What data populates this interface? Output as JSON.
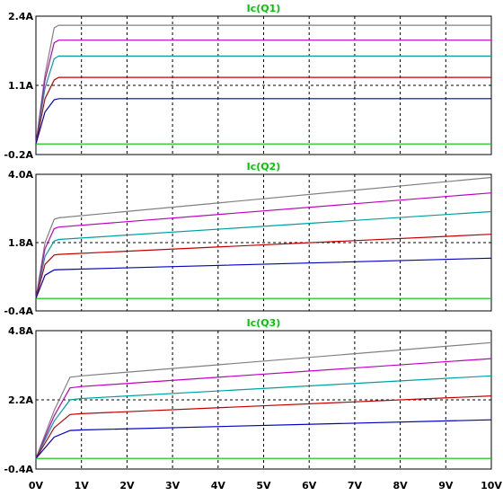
{
  "chart_data": [
    {
      "type": "line",
      "title": "Ic(Q1)",
      "xlabel": "",
      "ylabel": "",
      "xlim": [
        0,
        10
      ],
      "ylim": [
        -0.2,
        2.4
      ],
      "y_ticks": [
        "2.4A",
        "1.1A",
        "-0.2A"
      ],
      "x_ticks": [],
      "grid": true,
      "series": [
        {
          "color": "#808080",
          "values": [
            [
              0,
              0.0
            ],
            [
              0.2,
              1.3
            ],
            [
              0.4,
              2.18
            ],
            [
              0.5,
              2.23
            ],
            [
              10,
              2.23
            ]
          ]
        },
        {
          "color": "#bf00bf",
          "values": [
            [
              0,
              0.0
            ],
            [
              0.2,
              1.2
            ],
            [
              0.4,
              1.9
            ],
            [
              0.5,
              1.95
            ],
            [
              10,
              1.95
            ]
          ]
        },
        {
          "color": "#00a0a0",
          "values": [
            [
              0,
              0.0
            ],
            [
              0.2,
              1.05
            ],
            [
              0.4,
              1.6
            ],
            [
              0.5,
              1.65
            ],
            [
              10,
              1.65
            ]
          ]
        },
        {
          "color": "#c00000",
          "values": [
            [
              0,
              0.0
            ],
            [
              0.2,
              0.85
            ],
            [
              0.4,
              1.2
            ],
            [
              0.5,
              1.25
            ],
            [
              10,
              1.25
            ]
          ]
        },
        {
          "color": "#0000c0",
          "values": [
            [
              0,
              0.0
            ],
            [
              0.2,
              0.6
            ],
            [
              0.4,
              0.83
            ],
            [
              0.5,
              0.85
            ],
            [
              10,
              0.85
            ]
          ]
        },
        {
          "color": "#00c000",
          "values": [
            [
              0,
              0.0
            ],
            [
              10,
              0.0
            ]
          ]
        }
      ]
    },
    {
      "type": "line",
      "title": "Ic(Q2)",
      "xlabel": "",
      "ylabel": "",
      "xlim": [
        0,
        10
      ],
      "ylim": [
        -0.4,
        4.0
      ],
      "y_ticks": [
        "4.0A",
        "1.8A",
        "-0.4A"
      ],
      "x_ticks": [],
      "grid": true,
      "series": [
        {
          "color": "#808080",
          "values": [
            [
              0,
              0.0
            ],
            [
              0.2,
              1.8
            ],
            [
              0.4,
              2.55
            ],
            [
              0.5,
              2.6
            ],
            [
              10,
              3.9
            ]
          ]
        },
        {
          "color": "#bf00bf",
          "values": [
            [
              0,
              0.0
            ],
            [
              0.2,
              1.6
            ],
            [
              0.4,
              2.25
            ],
            [
              0.5,
              2.3
            ],
            [
              10,
              3.4
            ]
          ]
        },
        {
          "color": "#00a0a0",
          "values": [
            [
              0,
              0.0
            ],
            [
              0.2,
              1.35
            ],
            [
              0.4,
              1.85
            ],
            [
              0.5,
              1.9
            ],
            [
              10,
              2.8
            ]
          ]
        },
        {
          "color": "#c00000",
          "values": [
            [
              0,
              0.0
            ],
            [
              0.2,
              1.1
            ],
            [
              0.4,
              1.4
            ],
            [
              0.5,
              1.42
            ],
            [
              10,
              2.07
            ]
          ]
        },
        {
          "color": "#0000c0",
          "values": [
            [
              0,
              0.0
            ],
            [
              0.2,
              0.75
            ],
            [
              0.4,
              0.92
            ],
            [
              0.5,
              0.93
            ],
            [
              10,
              1.3
            ]
          ]
        },
        {
          "color": "#00c000",
          "values": [
            [
              0,
              0.0
            ],
            [
              10,
              0.0
            ]
          ]
        }
      ]
    },
    {
      "type": "line",
      "title": "Ic(Q3)",
      "xlabel": "",
      "ylabel": "",
      "xlim": [
        0,
        10
      ],
      "ylim": [
        -0.4,
        4.8
      ],
      "y_ticks": [
        "4.8A",
        "2.2A",
        "-0.4A"
      ],
      "x_ticks": [
        "0V",
        "1V",
        "2V",
        "3V",
        "4V",
        "5V",
        "6V",
        "7V",
        "8V",
        "9V",
        "10V"
      ],
      "grid": true,
      "series": [
        {
          "color": "#808080",
          "values": [
            [
              0,
              0.0
            ],
            [
              0.4,
              1.8
            ],
            [
              0.75,
              3.05
            ],
            [
              1.0,
              3.1
            ],
            [
              10,
              4.35
            ]
          ]
        },
        {
          "color": "#bf00bf",
          "values": [
            [
              0,
              0.0
            ],
            [
              0.4,
              1.6
            ],
            [
              0.75,
              2.65
            ],
            [
              1.0,
              2.7
            ],
            [
              10,
              3.75
            ]
          ]
        },
        {
          "color": "#00a0a0",
          "values": [
            [
              0,
              0.0
            ],
            [
              0.4,
              1.4
            ],
            [
              0.75,
              2.2
            ],
            [
              1.0,
              2.25
            ],
            [
              10,
              3.1
            ]
          ]
        },
        {
          "color": "#c00000",
          "values": [
            [
              0,
              0.0
            ],
            [
              0.4,
              1.15
            ],
            [
              0.75,
              1.65
            ],
            [
              1.0,
              1.68
            ],
            [
              10,
              2.35
            ]
          ]
        },
        {
          "color": "#0000c0",
          "values": [
            [
              0,
              0.0
            ],
            [
              0.4,
              0.8
            ],
            [
              0.75,
              1.05
            ],
            [
              1.0,
              1.07
            ],
            [
              10,
              1.45
            ]
          ]
        },
        {
          "color": "#00c000",
          "values": [
            [
              0,
              0.0
            ],
            [
              10,
              0.0
            ]
          ]
        }
      ]
    }
  ]
}
